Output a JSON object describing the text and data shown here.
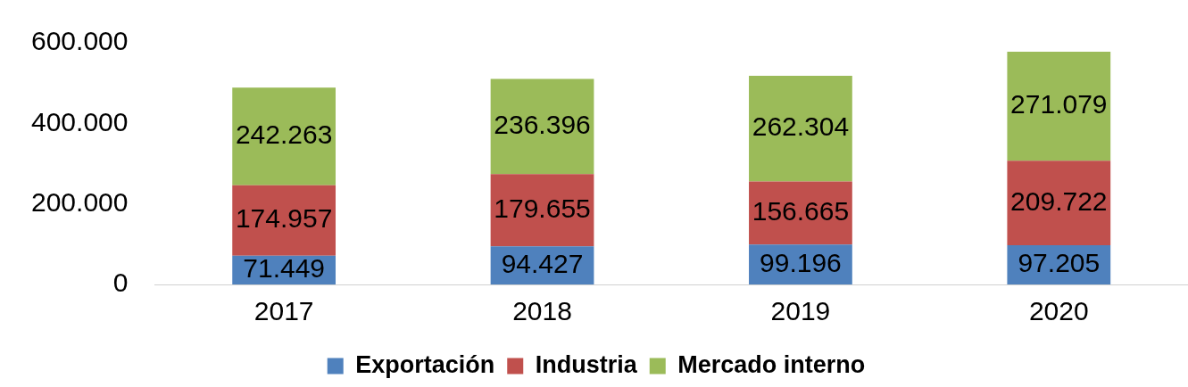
{
  "chart_data": {
    "type": "bar",
    "stacked": true,
    "categories": [
      "2017",
      "2018",
      "2019",
      "2020"
    ],
    "series": [
      {
        "name": "Exportación",
        "color": "#4f81bd",
        "values": [
          71449,
          94427,
          99196,
          97205
        ],
        "value_labels": [
          "71.449",
          "94.427",
          "99.196",
          "97.205"
        ]
      },
      {
        "name": "Industria",
        "color": "#c0504d",
        "values": [
          174957,
          179655,
          156665,
          209722
        ],
        "value_labels": [
          "174.957",
          "179.655",
          "156.665",
          "209.722"
        ]
      },
      {
        "name": "Mercado interno",
        "color": "#9bbb59",
        "values": [
          242263,
          236396,
          262304,
          271079
        ],
        "value_labels": [
          "242.263",
          "236.396",
          "262.304",
          "271.079"
        ]
      }
    ],
    "ylim": [
      0,
      600000
    ],
    "yticks": [
      0,
      {
        "value": 200000,
        "label": "200.000"
      },
      {
        "value": 400000,
        "label": "400.000"
      },
      {
        "value": 600000,
        "label": "600.000"
      }
    ],
    "grid": false,
    "legend": "bottom"
  }
}
